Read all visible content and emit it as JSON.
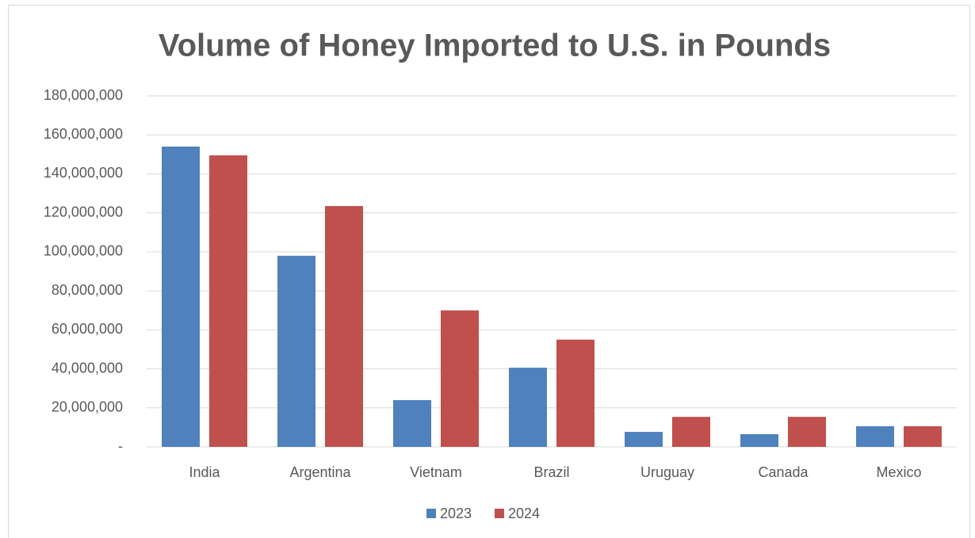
{
  "chart_data": {
    "type": "bar",
    "title": "Volume of Honey Imported to U.S. in Pounds",
    "categories": [
      "India",
      "Argentina",
      "Vietnam",
      "Brazil",
      "Uruguay",
      "Canada",
      "Mexico"
    ],
    "series": [
      {
        "name": "2023",
        "color": "#4f81bd",
        "values": [
          154000000,
          98000000,
          24000000,
          40600000,
          7700000,
          6500000,
          10600000
        ]
      },
      {
        "name": "2024",
        "color": "#c0504d",
        "values": [
          149500000,
          123500000,
          70000000,
          55000000,
          15400000,
          15400000,
          10600000
        ]
      }
    ],
    "ylim": [
      0,
      180000000
    ],
    "yticks": [
      {
        "value": 0,
        "label": "-"
      },
      {
        "value": 20000000,
        "label": "20,000,000"
      },
      {
        "value": 40000000,
        "label": "40,000,000"
      },
      {
        "value": 60000000,
        "label": "60,000,000"
      },
      {
        "value": 80000000,
        "label": "80,000,000"
      },
      {
        "value": 100000000,
        "label": "100,000,000"
      },
      {
        "value": 120000000,
        "label": "120,000,000"
      },
      {
        "value": 140000000,
        "label": "140,000,000"
      },
      {
        "value": 160000000,
        "label": "160,000,000"
      },
      {
        "value": 180000000,
        "label": "180,000,000"
      }
    ],
    "grid": true,
    "legend": "bottom"
  }
}
